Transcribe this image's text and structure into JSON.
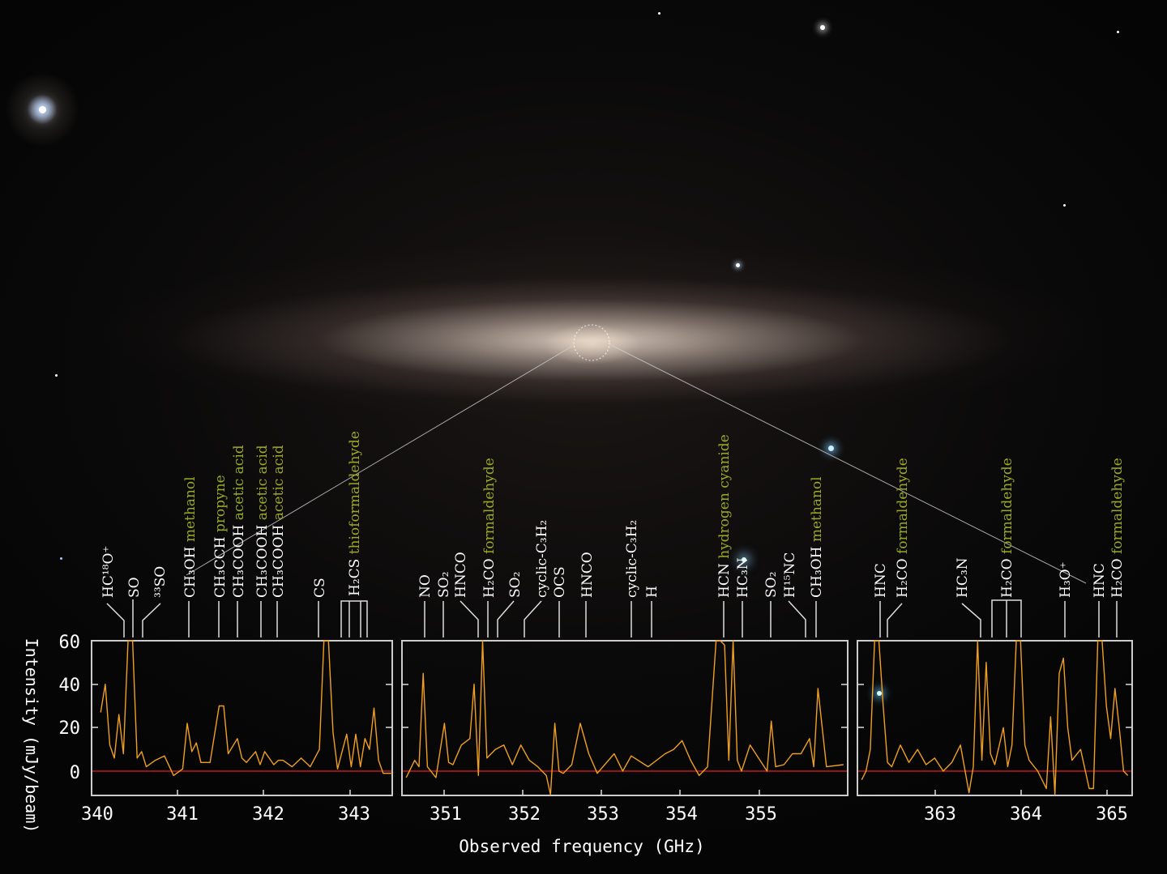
{
  "chart_data": {
    "type": "line",
    "title": "",
    "xlabel": "Observed frequency (GHz)",
    "ylabel": "Intensity (mJy/beam)",
    "ylim": [
      -15,
      60
    ],
    "yticks": [
      0,
      20,
      40,
      60
    ],
    "grid": false,
    "legend": null,
    "colors": {
      "trace": "#f0a020",
      "baseline": "#c01818",
      "frame": "#cccccc",
      "molecule_label": "#ffffff",
      "common_name": "#9aaa22"
    },
    "panels": [
      {
        "id": "panel-1",
        "xlim": [
          340.0,
          343.3
        ],
        "xticks": [
          340,
          341,
          342,
          343
        ],
        "series": [
          {
            "name": "spectrum",
            "x": [
              340.1,
              340.15,
              340.2,
              340.25,
              340.3,
              340.35,
              340.4,
              340.45,
              340.5,
              340.55,
              340.6,
              340.7,
              340.8,
              340.9,
              341.0,
              341.05,
              341.1,
              341.15,
              341.2,
              341.3,
              341.4,
              341.45,
              341.5,
              341.6,
              341.65,
              341.7,
              341.8,
              341.85,
              341.9,
              342.0,
              342.05,
              342.1,
              342.2,
              342.3,
              342.4,
              342.5,
              342.55,
              342.6,
              342.65,
              342.7,
              342.8,
              342.85,
              342.9,
              342.95,
              343.0,
              343.05,
              343.1,
              343.15,
              343.2,
              343.3
            ],
            "values": [
              27,
              40,
              12,
              6,
              26,
              8,
              60,
              60,
              6,
              9,
              2,
              5,
              7,
              -2,
              1,
              22,
              9,
              13,
              4,
              4,
              30,
              30,
              8,
              15,
              6,
              4,
              9,
              3,
              9,
              3,
              5,
              5,
              2,
              6,
              2,
              10,
              60,
              60,
              18,
              1,
              17,
              2,
              17,
              2,
              15,
              10,
              29,
              5,
              -1,
              -1
            ]
          }
        ],
        "lines": [
          {
            "formula": "HC18O+",
            "name": ""
          },
          {
            "formula": "SO",
            "name": ""
          },
          {
            "formula": "33SO",
            "name": ""
          },
          {
            "formula": "CH3OH",
            "name": "methanol"
          },
          {
            "formula": "CH3CCH",
            "name": "propyne"
          },
          {
            "formula": "CH3COOH",
            "name": "acetic acid"
          },
          {
            "formula": "CH3COOH",
            "name": "acetic acid"
          },
          {
            "formula": "CH3COOH",
            "name": "acetic acid"
          },
          {
            "formula": "CS",
            "name": ""
          },
          {
            "formula": "H2CS",
            "name": "thioformaldehyde"
          }
        ]
      },
      {
        "id": "panel-2",
        "xlim": [
          350.5,
          355.75
        ],
        "xticks": [
          351,
          352,
          353,
          354,
          355
        ],
        "series": [
          {
            "name": "spectrum",
            "x": [
              350.55,
              350.65,
              350.7,
              350.75,
              350.8,
              350.9,
              351.0,
              351.05,
              351.1,
              351.2,
              351.3,
              351.35,
              351.4,
              351.45,
              351.5,
              351.6,
              351.7,
              351.8,
              351.9,
              352.0,
              352.1,
              352.2,
              352.25,
              352.3,
              352.35,
              352.4,
              352.5,
              352.6,
              352.7,
              352.8,
              353.0,
              353.1,
              353.2,
              353.4,
              353.6,
              353.7,
              353.8,
              353.9,
              354.0,
              354.1,
              354.2,
              354.25,
              354.3,
              354.35,
              354.4,
              354.45,
              354.5,
              354.6,
              354.7,
              354.8,
              354.85,
              354.9,
              355.0,
              355.1,
              355.2,
              355.3,
              355.35,
              355.4,
              355.5,
              355.7
            ],
            "values": [
              -3,
              5,
              2,
              45,
              2,
              -3,
              22,
              4,
              3,
              12,
              15,
              40,
              -2,
              60,
              6,
              10,
              12,
              3,
              12,
              5,
              2,
              -2,
              -12,
              22,
              0,
              -1,
              3,
              22,
              8,
              -1,
              8,
              0,
              7,
              2,
              8,
              10,
              14,
              5,
              -2,
              2,
              60,
              60,
              58,
              5,
              60,
              5,
              0,
              12,
              6,
              0,
              23,
              2,
              3,
              8,
              8,
              15,
              2,
              38,
              2,
              3
            ]
          }
        ],
        "lines": [
          {
            "formula": "NO",
            "name": ""
          },
          {
            "formula": "SO2",
            "name": ""
          },
          {
            "formula": "HNCO",
            "name": ""
          },
          {
            "formula": "H2CO",
            "name": "formaldehyde"
          },
          {
            "formula": "SO2",
            "name": ""
          },
          {
            "formula": "cyclic-C3H2",
            "name": ""
          },
          {
            "formula": "OCS",
            "name": ""
          },
          {
            "formula": "HNCO",
            "name": ""
          },
          {
            "formula": "cyclic-C3H2",
            "name": ""
          },
          {
            "formula": "H",
            "name": ""
          },
          {
            "formula": "HCN",
            "name": "hydrogen cyanide"
          },
          {
            "formula": "HC3N",
            "name": ""
          },
          {
            "formula": "SO2",
            "name": ""
          },
          {
            "formula": "H15NC",
            "name": ""
          },
          {
            "formula": "CH3OH",
            "name": "methanol"
          }
        ]
      },
      {
        "id": "panel-3",
        "xlim": [
          362.1,
          365.3
        ],
        "xticks": [
          363,
          364,
          365
        ],
        "series": [
          {
            "name": "spectrum",
            "x": [
              362.15,
              362.2,
              362.25,
              362.3,
              362.35,
              362.4,
              362.45,
              362.5,
              362.6,
              362.7,
              362.8,
              362.9,
              363.0,
              363.1,
              363.2,
              363.3,
              363.4,
              363.45,
              363.5,
              363.55,
              363.6,
              363.65,
              363.7,
              363.8,
              363.85,
              363.9,
              363.95,
              364.0,
              364.05,
              364.1,
              364.2,
              364.3,
              364.35,
              364.4,
              364.45,
              364.5,
              364.55,
              364.6,
              364.7,
              364.8,
              364.85,
              364.9,
              364.95,
              365.0,
              365.05,
              365.1,
              365.15,
              365.2,
              365.25
            ],
            "values": [
              -4,
              0,
              10,
              60,
              60,
              30,
              4,
              2,
              12,
              4,
              10,
              3,
              6,
              0,
              4,
              12,
              -10,
              2,
              60,
              5,
              50,
              8,
              3,
              20,
              2,
              12,
              60,
              60,
              12,
              5,
              0,
              -8,
              25,
              -12,
              45,
              52,
              20,
              5,
              10,
              -8,
              -8,
              60,
              60,
              30,
              15,
              38,
              20,
              0,
              -2
            ]
          }
        ],
        "lines": [
          {
            "formula": "HNC",
            "name": ""
          },
          {
            "formula": "H2CO",
            "name": "formaldehyde"
          },
          {
            "formula": "HC3N",
            "name": ""
          },
          {
            "formula": "H2CO",
            "name": "formaldehyde"
          },
          {
            "formula": "H3O+",
            "name": ""
          },
          {
            "formula": "HNC",
            "name": ""
          },
          {
            "formula": "H2CO",
            "name": "formaldehyde"
          }
        ]
      }
    ]
  },
  "labels": {
    "xlabel": "Observed frequency (GHz)",
    "ylabel": "Intensity (mJy/beam)",
    "yticks": [
      "60",
      "40",
      "20",
      "0"
    ],
    "p1_xticks": [
      "340",
      "341",
      "342",
      "343"
    ],
    "p2_xticks": [
      "351",
      "352",
      "353",
      "354",
      "355"
    ],
    "p3_xticks": [
      "363",
      "364",
      "365"
    ],
    "mol": {
      "hc18o": "HC¹⁸O⁺",
      "so": "SO",
      "so33": "³³SO",
      "ch3oh": "CH₃OH",
      "ch3cch": "CH₃CCH",
      "ch3cooh": "CH₃COOH",
      "cs": "CS",
      "h2cs": "H₂CS",
      "no": "NO",
      "so2": "SO₂",
      "hnco": "HNCO",
      "h2co": "H₂CO",
      "cc3h2": "cyclic-C₃H₂",
      "ocs": "OCS",
      "h": "H",
      "hcn": "HCN",
      "hc3n": "HC₃N",
      "h15nc": "H¹⁵NC",
      "hnc": "HNC",
      "h3o": "H₃O⁺"
    },
    "names": {
      "methanol": "methanol",
      "propyne": "propyne",
      "acetic": "acetic acid",
      "thioform": "thioformaldehyde",
      "formald": "formaldehyde",
      "hcn": "hydrogen cyanide"
    }
  }
}
